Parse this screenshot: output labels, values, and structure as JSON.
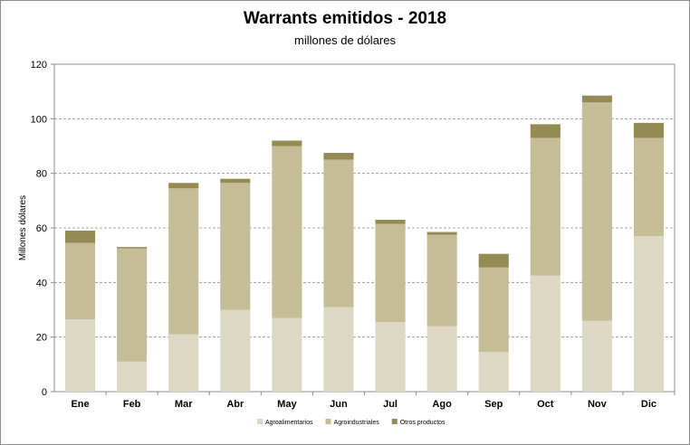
{
  "chart_data": {
    "type": "bar",
    "stacked": true,
    "title": "Warrants  emitidos  - 2018",
    "subtitle": "millones de dólares",
    "ylabel": "Millones dólares",
    "xlabel": "",
    "ylim": [
      0,
      120
    ],
    "yticks": [
      0,
      20,
      40,
      60,
      80,
      100,
      120
    ],
    "grid": true,
    "legend_position": "bottom",
    "categories": [
      "Ene",
      "Feb",
      "Mar",
      "Abr",
      "May",
      "Jun",
      "Jul",
      "Ago",
      "Sep",
      "Oct",
      "Nov",
      "Dic"
    ],
    "series": [
      {
        "name": "Agroalimentarios",
        "color": "#ddd8c4",
        "values": [
          26.5,
          11,
          21,
          30,
          27,
          31,
          25.5,
          24,
          14.5,
          42.5,
          26,
          57
        ]
      },
      {
        "name": "Agroindustriales",
        "color": "#c4bd97",
        "values": [
          28,
          41.5,
          53.5,
          46.5,
          63,
          54,
          36,
          33.5,
          31,
          50.5,
          80,
          36
        ]
      },
      {
        "name": "Otros productos",
        "color": "#948a54",
        "values": [
          4.5,
          0.5,
          2,
          1.5,
          2,
          2.5,
          1.5,
          1,
          5,
          5,
          2.5,
          5.5
        ]
      }
    ]
  }
}
